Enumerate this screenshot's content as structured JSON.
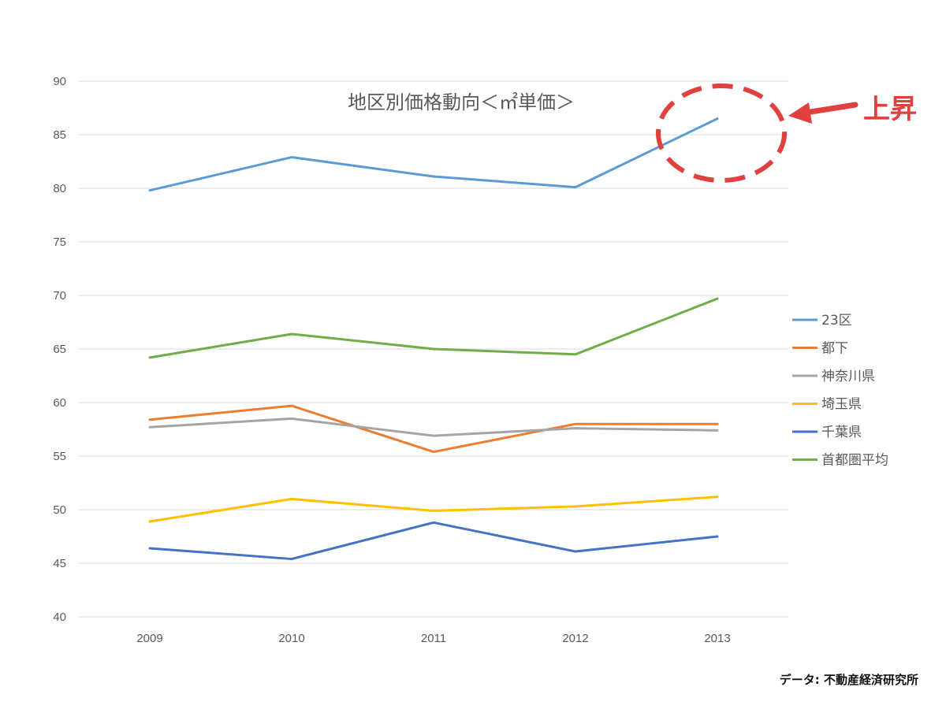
{
  "chart_data": {
    "type": "line",
    "title": "地区別価格動向＜㎡単価＞",
    "categories": [
      "2009",
      "2010",
      "2011",
      "2012",
      "2013"
    ],
    "ylim": [
      40,
      90
    ],
    "yticks": [
      "40",
      "45",
      "50",
      "55",
      "60",
      "65",
      "70",
      "75",
      "80",
      "85",
      "90"
    ],
    "grid": true,
    "legend_position": "right",
    "series": [
      {
        "name": "23区",
        "color": "#5b9bd5",
        "values": [
          79.8,
          82.9,
          81.1,
          80.1,
          86.5
        ]
      },
      {
        "name": "都下",
        "color": "#ed7d31",
        "values": [
          58.4,
          59.7,
          55.4,
          58.0,
          58.0
        ]
      },
      {
        "name": "神奈川県",
        "color": "#a5a5a5",
        "values": [
          57.7,
          58.5,
          56.9,
          57.6,
          57.4
        ]
      },
      {
        "name": "埼玉県",
        "color": "#ffc000",
        "values": [
          48.9,
          51.0,
          49.9,
          50.3,
          51.2
        ]
      },
      {
        "name": "千葉県",
        "color": "#4472c4",
        "values": [
          46.4,
          45.4,
          48.8,
          46.1,
          47.5
        ]
      },
      {
        "name": "首都圏平均",
        "color": "#70ad47",
        "values": [
          64.2,
          66.4,
          65.0,
          64.5,
          69.7
        ]
      }
    ],
    "annotation": {
      "text": "上昇",
      "color": "#e0403e"
    },
    "source": "データ: 不動産経済研究所"
  }
}
